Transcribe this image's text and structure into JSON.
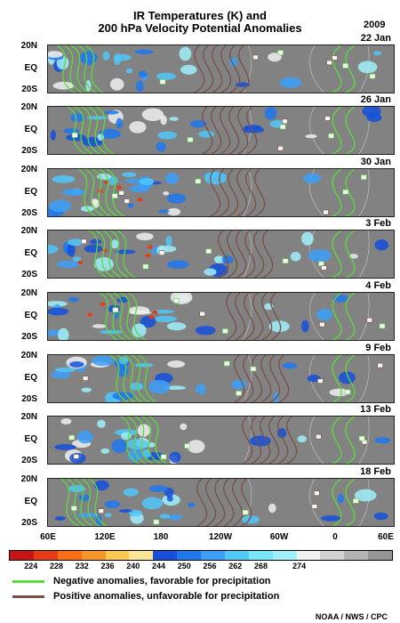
{
  "title_line1": "IR Temperatures (K) and",
  "title_line2": "200 hPa Velocity Potential Anomalies",
  "year": "2009",
  "lat_labels": [
    "20N",
    "EQ",
    "20S"
  ],
  "panels": [
    {
      "date": "22 Jan"
    },
    {
      "date": "26 Jan"
    },
    {
      "date": "30 Jan"
    },
    {
      "date": "3 Feb"
    },
    {
      "date": "4 Feb"
    },
    {
      "date": "9 Feb"
    },
    {
      "date": "13 Feb"
    },
    {
      "date": "18 Feb"
    }
  ],
  "lon_labels": [
    "60E",
    "120E",
    "180",
    "120W",
    "60W",
    "0",
    "60E"
  ],
  "colorbar": {
    "colors": [
      "#c81414",
      "#e63c14",
      "#fa6e14",
      "#fa9628",
      "#fac850",
      "#fae696",
      "#1450dc",
      "#1e78f0",
      "#3ca0fa",
      "#50c8fa",
      "#78e6fa",
      "#a0f0fa",
      "#f0f0f0",
      "#d2d2d2",
      "#b4b4b4",
      "#969696"
    ],
    "labels": [
      "224",
      "228",
      "232",
      "236",
      "240",
      "244",
      "250",
      "256",
      "262",
      "268",
      "274"
    ]
  },
  "legend": {
    "negative": {
      "color": "#5adc3c",
      "text": "Negative anomalies, favorable for precipitation"
    },
    "positive": {
      "color": "#785046",
      "text": "Positive anomalies, unfavorable for precipitation"
    }
  },
  "credit": "NOAA / NWS / CPC"
}
